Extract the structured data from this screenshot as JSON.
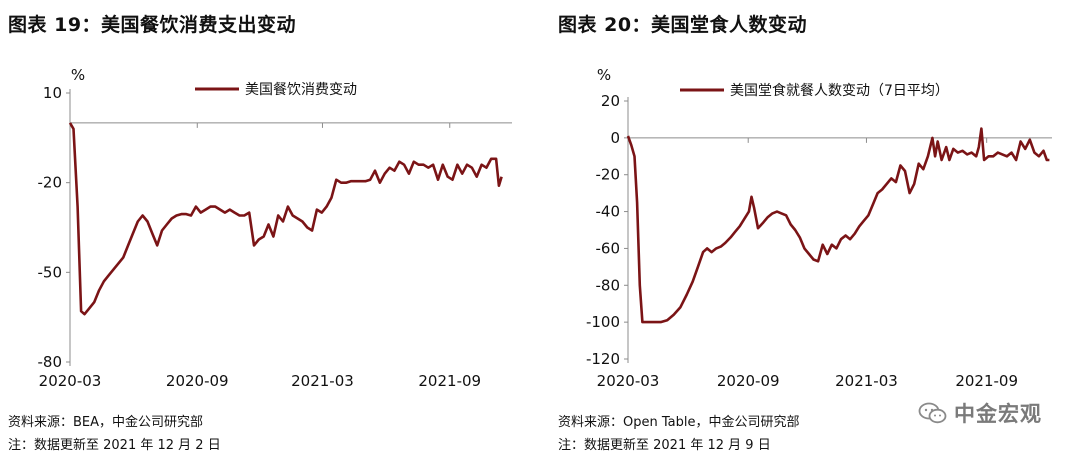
{
  "chart_data": [
    {
      "type": "line",
      "title": "图表 19：美国餐饮消费支出变动",
      "ylabel": "%",
      "ylim": [
        -80,
        10
      ],
      "yticks": [
        10,
        -20,
        -50,
        -80
      ],
      "xlim": [
        "2020-03-01",
        "2021-11-30"
      ],
      "xticks": [
        {
          "date": "2020-03-01",
          "label": "2020-03"
        },
        {
          "date": "2020-09-01",
          "label": "2020-09"
        },
        {
          "date": "2021-03-01",
          "label": "2021-03"
        },
        {
          "date": "2021-09-01",
          "label": "2021-09"
        }
      ],
      "legend": "top-center",
      "series": [
        {
          "name": "美国餐饮消费变动",
          "color": "#7b1416",
          "points": [
            [
              "2020-03-01",
              0
            ],
            [
              "2020-03-06",
              -2
            ],
            [
              "2020-03-12",
              -28
            ],
            [
              "2020-03-17",
              -63
            ],
            [
              "2020-03-22",
              -64
            ],
            [
              "2020-03-29",
              -62
            ],
            [
              "2020-04-05",
              -60
            ],
            [
              "2020-04-12",
              -56
            ],
            [
              "2020-04-19",
              -53
            ],
            [
              "2020-04-26",
              -51
            ],
            [
              "2020-05-03",
              -49
            ],
            [
              "2020-05-10",
              -47
            ],
            [
              "2020-05-17",
              -45
            ],
            [
              "2020-05-24",
              -41
            ],
            [
              "2020-05-31",
              -37
            ],
            [
              "2020-06-07",
              -33
            ],
            [
              "2020-06-14",
              -31
            ],
            [
              "2020-06-21",
              -33
            ],
            [
              "2020-06-28",
              -37
            ],
            [
              "2020-07-05",
              -41
            ],
            [
              "2020-07-12",
              -36
            ],
            [
              "2020-07-19",
              -34
            ],
            [
              "2020-07-26",
              -32
            ],
            [
              "2020-08-02",
              -31
            ],
            [
              "2020-08-09",
              -30.5
            ],
            [
              "2020-08-16",
              -30.5
            ],
            [
              "2020-08-23",
              -31
            ],
            [
              "2020-08-30",
              -28
            ],
            [
              "2020-09-06",
              -30
            ],
            [
              "2020-09-13",
              -29
            ],
            [
              "2020-09-20",
              -28
            ],
            [
              "2020-09-27",
              -28
            ],
            [
              "2020-10-04",
              -29
            ],
            [
              "2020-10-11",
              -30
            ],
            [
              "2020-10-18",
              -29
            ],
            [
              "2020-10-25",
              -30
            ],
            [
              "2020-11-01",
              -31
            ],
            [
              "2020-11-08",
              -31
            ],
            [
              "2020-11-15",
              -30
            ],
            [
              "2020-11-22",
              -41
            ],
            [
              "2020-11-29",
              -39
            ],
            [
              "2020-12-06",
              -38
            ],
            [
              "2020-12-13",
              -34
            ],
            [
              "2020-12-20",
              -38
            ],
            [
              "2020-12-27",
              -31
            ],
            [
              "2021-01-03",
              -33
            ],
            [
              "2021-01-10",
              -28
            ],
            [
              "2021-01-17",
              -31
            ],
            [
              "2021-01-24",
              -32
            ],
            [
              "2021-01-31",
              -33
            ],
            [
              "2021-02-07",
              -35
            ],
            [
              "2021-02-14",
              -36
            ],
            [
              "2021-02-21",
              -29
            ],
            [
              "2021-02-28",
              -30
            ],
            [
              "2021-03-07",
              -28
            ],
            [
              "2021-03-14",
              -25
            ],
            [
              "2021-03-21",
              -19
            ],
            [
              "2021-03-28",
              -20
            ],
            [
              "2021-04-04",
              -20
            ],
            [
              "2021-04-11",
              -19.5
            ],
            [
              "2021-04-18",
              -19.5
            ],
            [
              "2021-04-25",
              -19.5
            ],
            [
              "2021-05-02",
              -19.5
            ],
            [
              "2021-05-09",
              -19
            ],
            [
              "2021-05-16",
              -16
            ],
            [
              "2021-05-23",
              -20
            ],
            [
              "2021-05-30",
              -17
            ],
            [
              "2021-06-06",
              -15
            ],
            [
              "2021-06-13",
              -16
            ],
            [
              "2021-06-20",
              -13
            ],
            [
              "2021-06-27",
              -14
            ],
            [
              "2021-07-04",
              -17
            ],
            [
              "2021-07-11",
              -13
            ],
            [
              "2021-07-18",
              -14
            ],
            [
              "2021-07-25",
              -14
            ],
            [
              "2021-08-01",
              -15
            ],
            [
              "2021-08-08",
              -14
            ],
            [
              "2021-08-15",
              -19
            ],
            [
              "2021-08-22",
              -14
            ],
            [
              "2021-08-29",
              -18
            ],
            [
              "2021-09-05",
              -19
            ],
            [
              "2021-09-12",
              -14
            ],
            [
              "2021-09-19",
              -17
            ],
            [
              "2021-09-26",
              -14
            ],
            [
              "2021-10-03",
              -15
            ],
            [
              "2021-10-10",
              -18
            ],
            [
              "2021-10-17",
              -14
            ],
            [
              "2021-10-24",
              -15
            ],
            [
              "2021-10-31",
              -12
            ],
            [
              "2021-11-07",
              -12
            ],
            [
              "2021-11-11",
              -21
            ],
            [
              "2021-11-15",
              -18
            ]
          ]
        }
      ],
      "source": "资料来源：BEA，中金公司研究部",
      "update": "注：数据更新至 2021 年 12 月 2 日"
    },
    {
      "type": "line",
      "title": "图表 20：美国堂食人数变动",
      "ylabel": "%",
      "ylim": [
        -120,
        20
      ],
      "yticks": [
        20,
        0,
        -20,
        -40,
        -60,
        -80,
        -100,
        -120
      ],
      "xlim": [
        "2020-03-01",
        "2021-12-10"
      ],
      "xticks": [
        {
          "date": "2020-03-01",
          "label": "2020-03"
        },
        {
          "date": "2020-09-01",
          "label": "2020-09"
        },
        {
          "date": "2021-03-01",
          "label": "2021-03"
        },
        {
          "date": "2021-09-01",
          "label": "2021-09"
        }
      ],
      "legend": "top-center",
      "series": [
        {
          "name": "美国堂食就餐人数变动（7日平均）",
          "color": "#7b1416",
          "points": [
            [
              "2020-03-01",
              1
            ],
            [
              "2020-03-06",
              -4
            ],
            [
              "2020-03-11",
              -10
            ],
            [
              "2020-03-15",
              -35
            ],
            [
              "2020-03-19",
              -80
            ],
            [
              "2020-03-23",
              -100
            ],
            [
              "2020-04-05",
              -100
            ],
            [
              "2020-04-20",
              -100
            ],
            [
              "2020-04-30",
              -99
            ],
            [
              "2020-05-10",
              -96
            ],
            [
              "2020-05-20",
              -92
            ],
            [
              "2020-05-30",
              -85
            ],
            [
              "2020-06-08",
              -78
            ],
            [
              "2020-06-16",
              -70
            ],
            [
              "2020-06-24",
              -62
            ],
            [
              "2020-06-30",
              -60
            ],
            [
              "2020-07-07",
              -62
            ],
            [
              "2020-07-14",
              -60
            ],
            [
              "2020-07-21",
              -59
            ],
            [
              "2020-07-28",
              -57
            ],
            [
              "2020-08-05",
              -54
            ],
            [
              "2020-08-12",
              -51
            ],
            [
              "2020-08-19",
              -48
            ],
            [
              "2020-08-26",
              -44
            ],
            [
              "2020-09-02",
              -40
            ],
            [
              "2020-09-06",
              -32
            ],
            [
              "2020-09-10",
              -38
            ],
            [
              "2020-09-16",
              -49
            ],
            [
              "2020-09-24",
              -46
            ],
            [
              "2020-10-01",
              -43
            ],
            [
              "2020-10-08",
              -41
            ],
            [
              "2020-10-15",
              -40
            ],
            [
              "2020-10-22",
              -41
            ],
            [
              "2020-10-29",
              -42
            ],
            [
              "2020-11-05",
              -47
            ],
            [
              "2020-11-12",
              -50
            ],
            [
              "2020-11-19",
              -54
            ],
            [
              "2020-11-26",
              -60
            ],
            [
              "2020-12-03",
              -63
            ],
            [
              "2020-12-10",
              -66
            ],
            [
              "2020-12-17",
              -67
            ],
            [
              "2020-12-24",
              -58
            ],
            [
              "2020-12-31",
              -63
            ],
            [
              "2021-01-07",
              -58
            ],
            [
              "2021-01-14",
              -60
            ],
            [
              "2021-01-21",
              -55
            ],
            [
              "2021-01-28",
              -53
            ],
            [
              "2021-02-04",
              -55
            ],
            [
              "2021-02-11",
              -52
            ],
            [
              "2021-02-18",
              -48
            ],
            [
              "2021-02-25",
              -45
            ],
            [
              "2021-03-04",
              -42
            ],
            [
              "2021-03-11",
              -36
            ],
            [
              "2021-03-18",
              -30
            ],
            [
              "2021-03-25",
              -28
            ],
            [
              "2021-04-01",
              -25
            ],
            [
              "2021-04-08",
              -22
            ],
            [
              "2021-04-15",
              -24
            ],
            [
              "2021-04-22",
              -15
            ],
            [
              "2021-04-29",
              -18
            ],
            [
              "2021-05-06",
              -30
            ],
            [
              "2021-05-13",
              -25
            ],
            [
              "2021-05-20",
              -14
            ],
            [
              "2021-05-27",
              -17
            ],
            [
              "2021-06-03",
              -10
            ],
            [
              "2021-06-10",
              0
            ],
            [
              "2021-06-14",
              -10
            ],
            [
              "2021-06-18",
              -2
            ],
            [
              "2021-06-24",
              -12
            ],
            [
              "2021-07-01",
              -5
            ],
            [
              "2021-07-06",
              -12
            ],
            [
              "2021-07-12",
              -6
            ],
            [
              "2021-07-19",
              -8
            ],
            [
              "2021-07-26",
              -7
            ],
            [
              "2021-08-02",
              -9
            ],
            [
              "2021-08-09",
              -8
            ],
            [
              "2021-08-16",
              -10
            ],
            [
              "2021-08-20",
              -5
            ],
            [
              "2021-08-24",
              5
            ],
            [
              "2021-08-28",
              -12
            ],
            [
              "2021-09-04",
              -10
            ],
            [
              "2021-09-11",
              -10
            ],
            [
              "2021-09-18",
              -8
            ],
            [
              "2021-09-25",
              -9
            ],
            [
              "2021-10-02",
              -10
            ],
            [
              "2021-10-09",
              -8
            ],
            [
              "2021-10-16",
              -12
            ],
            [
              "2021-10-23",
              -2
            ],
            [
              "2021-10-30",
              -6
            ],
            [
              "2021-11-06",
              -1
            ],
            [
              "2021-11-13",
              -8
            ],
            [
              "2021-11-20",
              -10
            ],
            [
              "2021-11-27",
              -7
            ],
            [
              "2021-12-02",
              -12
            ],
            [
              "2021-12-06",
              -12
            ]
          ]
        }
      ],
      "source": "资料来源：Open Table，中金公司研究部",
      "update": "注：数据更新至 2021 年 12 月 9 日"
    }
  ],
  "watermark": {
    "icon": "wechat-icon",
    "text": "中金宏观",
    "color": "#7a7a7a"
  }
}
